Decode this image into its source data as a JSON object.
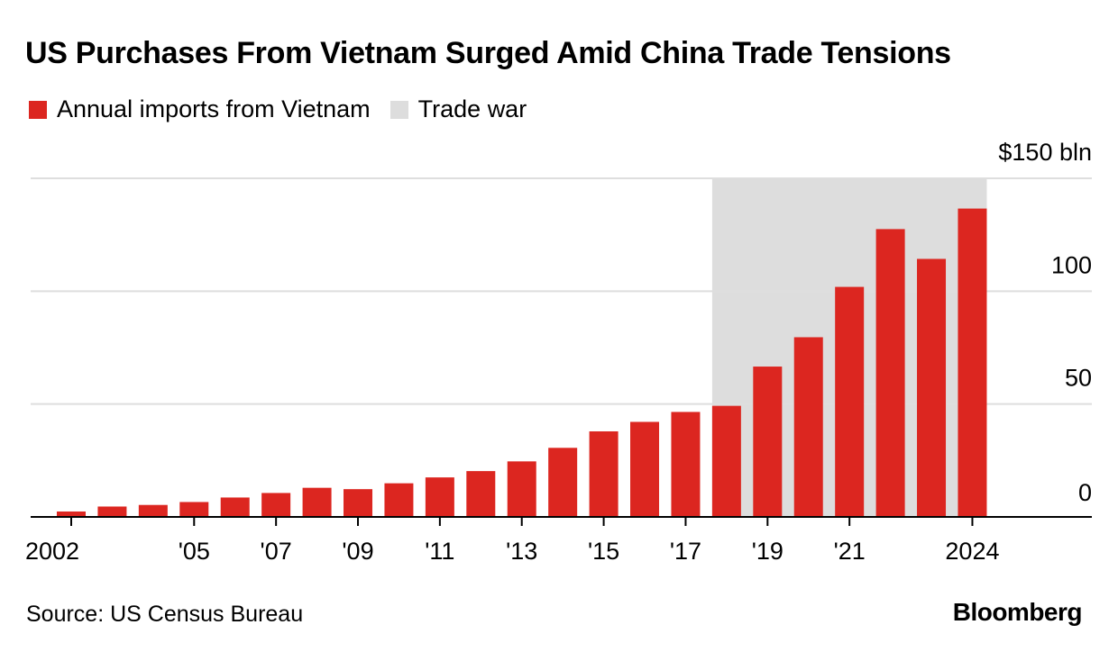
{
  "title": "US Purchases From Vietnam Surged Amid China Trade Tensions",
  "legend": [
    {
      "label": "Annual imports from Vietnam",
      "color": "#dc2620"
    },
    {
      "label": "Trade war",
      "color": "#dddddd"
    }
  ],
  "source": "Source: US Census Bureau",
  "brand": "Bloomberg",
  "colors": {
    "bar": "#dc2620",
    "shade": "#dddddd",
    "grid": "#dedede",
    "axis": "#000000"
  },
  "chart_data": {
    "type": "bar",
    "categories": [
      "2002",
      "2003",
      "2004",
      "2005",
      "2006",
      "2007",
      "2008",
      "2009",
      "2010",
      "2011",
      "2012",
      "2013",
      "2014",
      "2015",
      "2016",
      "2017",
      "2018",
      "2019",
      "2020",
      "2021",
      "2022",
      "2023",
      "2024"
    ],
    "x_tick_labels": [
      {
        "category": "2002",
        "label": "2002"
      },
      {
        "category": "2005",
        "label": "'05"
      },
      {
        "category": "2007",
        "label": "'07"
      },
      {
        "category": "2009",
        "label": "'09"
      },
      {
        "category": "2011",
        "label": "'11"
      },
      {
        "category": "2013",
        "label": "'13"
      },
      {
        "category": "2015",
        "label": "'15"
      },
      {
        "category": "2017",
        "label": "'17"
      },
      {
        "category": "2019",
        "label": "'19"
      },
      {
        "category": "2021",
        "label": "'21"
      },
      {
        "category": "2024",
        "label": "2024"
      }
    ],
    "series": [
      {
        "name": "Annual imports from Vietnam",
        "values": [
          2.4,
          4.6,
          5.3,
          6.6,
          8.6,
          10.6,
          12.9,
          12.3,
          14.9,
          17.5,
          20.3,
          24.6,
          30.6,
          37.9,
          42.1,
          46.5,
          49.2,
          66.6,
          79.6,
          101.9,
          127.5,
          114.3,
          136.6
        ]
      }
    ],
    "shaded_range": {
      "label": "Trade war",
      "from": "2018",
      "to": "2024"
    },
    "y_ticks": [
      {
        "value": 0,
        "label": "0"
      },
      {
        "value": 50,
        "label": "50"
      },
      {
        "value": 100,
        "label": "100"
      },
      {
        "value": 150,
        "label": "$150 bln"
      }
    ],
    "ylim": [
      0,
      150
    ],
    "grid": true,
    "y_axis_position": "right"
  }
}
